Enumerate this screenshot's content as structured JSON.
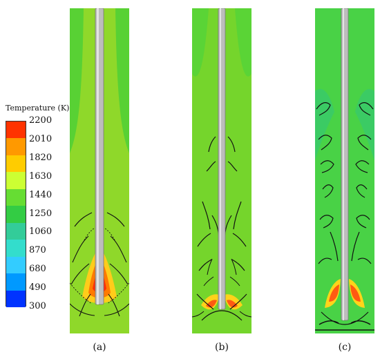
{
  "legend": {
    "title": "Temperature (K)",
    "ticks": [
      "2200",
      "2010",
      "1820",
      "1630",
      "1440",
      "1250",
      "1060",
      "870",
      "680",
      "490",
      "300"
    ],
    "colors": [
      "#ff3300",
      "#ff9900",
      "#ffcc00",
      "#ccff33",
      "#66dd33",
      "#33cc44",
      "#33cc99",
      "#33ddcc",
      "#33ccff",
      "#0099ff",
      "#0033ff"
    ]
  },
  "panels": [
    {
      "caption": "(a)"
    },
    {
      "caption": "(b)"
    },
    {
      "caption": "(c)"
    }
  ],
  "colors": {
    "base_field": "#8fd82a",
    "cool_field": "#35d04c",
    "hot_core": "#ff4a10",
    "warm": "#ffd21a",
    "contour": "#111111",
    "probe": "#bdbdbd"
  }
}
